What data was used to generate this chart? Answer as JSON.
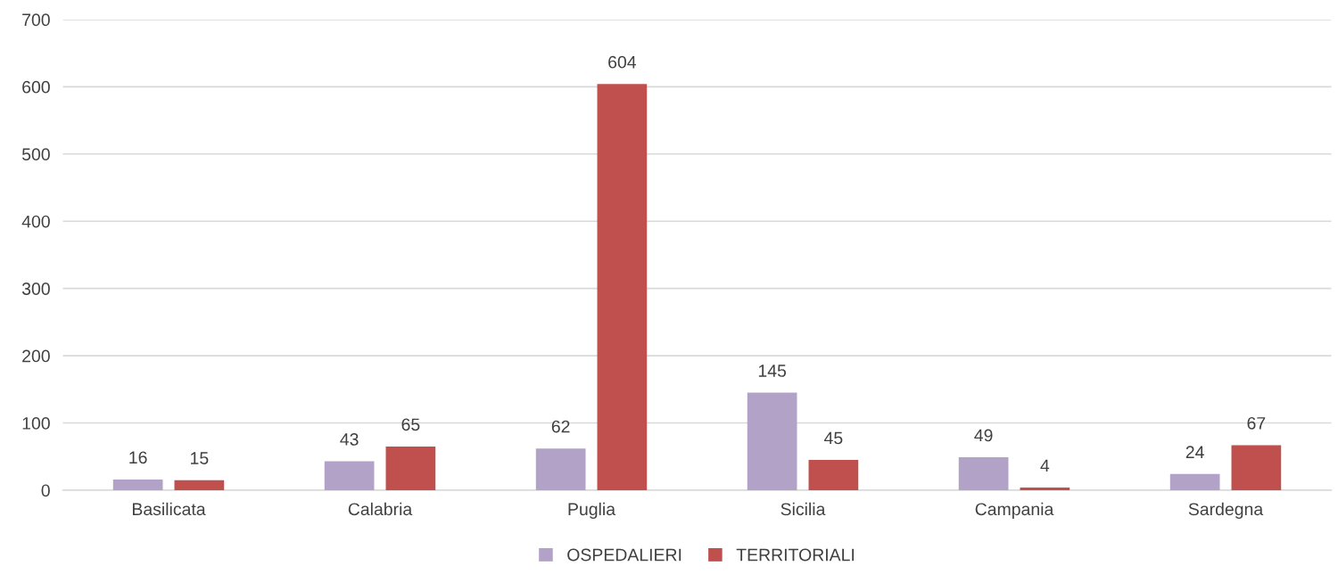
{
  "chart_data": {
    "type": "bar",
    "categories": [
      "Basilicata",
      "Calabria",
      "Puglia",
      "Sicilia",
      "Campania",
      "Sardegna"
    ],
    "series": [
      {
        "name": "OSPEDALIERI",
        "color": "#b3a2c7",
        "values": [
          16,
          43,
          62,
          145,
          49,
          24
        ]
      },
      {
        "name": "TERRITORIALI",
        "color": "#c0504d",
        "values": [
          15,
          65,
          604,
          45,
          4,
          67
        ]
      }
    ],
    "ylim": [
      0,
      700
    ],
    "yticks": [
      0,
      100,
      200,
      300,
      400,
      500,
      600,
      700
    ],
    "grid": "y",
    "legend": "bottom",
    "data_labels": true
  }
}
